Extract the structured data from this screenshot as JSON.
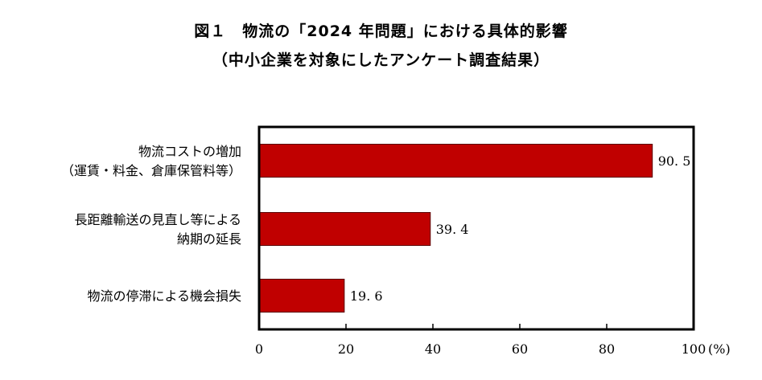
{
  "header": {
    "title": "図１　物流の「2024 年問題」における具体的影響",
    "subtitle": "（中小企業を対象にしたアンケート調査結果）"
  },
  "chart_data": {
    "type": "bar",
    "orientation": "horizontal",
    "title": "図１　物流の「2024 年問題」における具体的影響",
    "subtitle": "（中小企業を対象にしたアンケート調査結果）",
    "categories": [
      [
        "物流コストの増加",
        "（運賃・料金、倉庫保管料等）"
      ],
      [
        "長距離輸送の見直し等による",
        "納期の延長"
      ],
      [
        "物流の停滞による機会損失"
      ]
    ],
    "values": [
      90.5,
      39.4,
      19.6
    ],
    "value_labels": [
      "90. 5",
      "39. 4",
      "19. 6"
    ],
    "xticks": [
      0,
      20,
      40,
      60,
      80,
      100
    ],
    "xtick_labels": [
      "0",
      "20",
      "40",
      "60",
      "80",
      "100"
    ],
    "unit_label": "(%)",
    "xlim": [
      0,
      100
    ],
    "grid": false,
    "colors": {
      "bar": "#c00000",
      "bar_edge": "#5a0000",
      "frame": "#000000"
    }
  }
}
